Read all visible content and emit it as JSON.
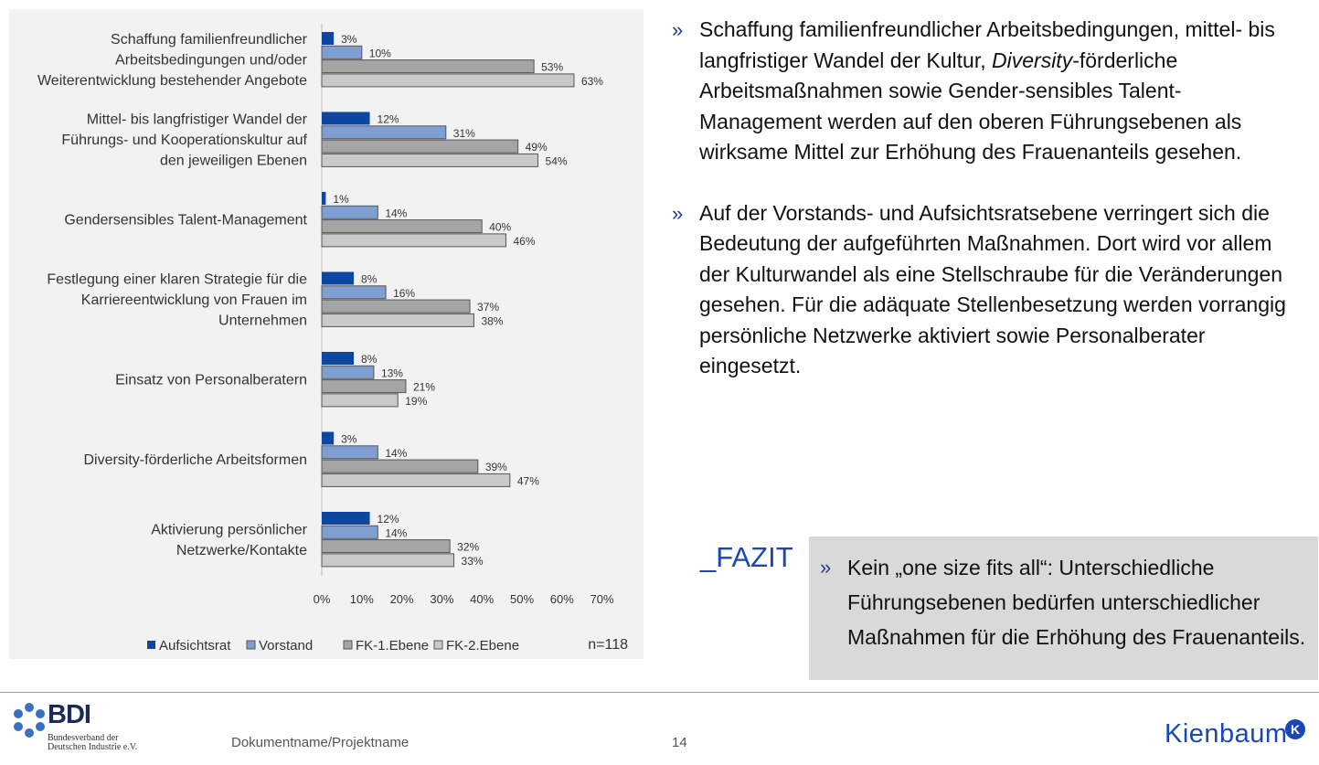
{
  "chart_data": {
    "type": "bar",
    "orientation": "horizontal",
    "categories": [
      "Schaffung familienfreundlicher Arbeitsbedingungen und/oder Weiterentwicklung bestehender Angebote",
      "Mittel- bis langfristiger Wandel der Führungs- und Kooperationskultur auf den jeweiligen Ebenen",
      "Gendersensibles Talent-Management",
      "Festlegung einer klaren Strategie für die Karriereentwicklung von Frauen im Unternehmen",
      "Einsatz von Personalberatern",
      "Diversity-förderliche Arbeitsformen",
      "Aktivierung persönlicher Netzwerke/Kontakte"
    ],
    "category_lines": [
      [
        "Schaffung familienfreundlicher",
        "Arbeitsbedingungen und/oder",
        "Weiterentwicklung bestehender Angebote"
      ],
      [
        "Mittel- bis langfristiger Wandel der",
        "Führungs- und Kooperationskultur auf",
        "den jeweiligen Ebenen"
      ],
      [
        "Gendersensibles Talent-Management"
      ],
      [
        "Festlegung einer klaren Strategie für die",
        "Karriereentwicklung von Frauen im",
        "Unternehmen"
      ],
      [
        "Einsatz von Personalberatern"
      ],
      [
        "Diversity-förderliche Arbeitsformen"
      ],
      [
        "Aktivierung persönlicher",
        "Netzwerke/Kontakte"
      ]
    ],
    "series": [
      {
        "name": "Aufsichtsrat",
        "color": "#0d47a1",
        "values": [
          3,
          12,
          1,
          8,
          8,
          3,
          12
        ]
      },
      {
        "name": "Vorstand",
        "color": "#7f9fd3",
        "values": [
          10,
          31,
          14,
          16,
          13,
          14,
          14
        ]
      },
      {
        "name": "FK-1.Ebene",
        "color": "#a5a5a5",
        "values": [
          53,
          49,
          40,
          37,
          21,
          39,
          32
        ]
      },
      {
        "name": "FK-2.Ebene",
        "color": "#c9c9c9",
        "values": [
          63,
          54,
          46,
          38,
          19,
          47,
          33
        ]
      }
    ],
    "value_suffix": "%",
    "xlim": [
      0,
      70
    ],
    "x_ticks": [
      "0%",
      "10%",
      "20%",
      "30%",
      "40%",
      "50%",
      "60%",
      "70%"
    ],
    "grid": false,
    "legend_position": "bottom",
    "n_label": "n=118"
  },
  "bullets": [
    {
      "mark": "»",
      "parts": [
        {
          "text": "Schaffung familienfreundlicher Arbeitsbedingungen, mittel- bis langfristiger Wandel der Kultur, ",
          "italic": false
        },
        {
          "text": "Diversity",
          "italic": true
        },
        {
          "text": "-förderliche Arbeitsmaßnahmen sowie Gender-sensibles Talent-Management werden auf den oberen Führungsebenen als wirksame Mittel zur Erhöhung des Frauenanteils gesehen.",
          "italic": false
        }
      ]
    },
    {
      "mark": "»",
      "parts": [
        {
          "text": "Auf der Vorstands- und Aufsichtsratsebene verringert sich die Bedeutung der aufgeführten Maßnahmen. Dort wird vor allem der Kulturwandel als eine Stellschraube für die Veränderungen gesehen. Für die adäquate Stellenbesetzung werden vorrangig persönliche Netzwerke aktiviert sowie Personalberater eingesetzt.",
          "italic": false
        }
      ]
    }
  ],
  "fazit": {
    "title": "_FAZIT",
    "mark": "»",
    "text": "Kein „one size fits all“: Unterschiedliche Führungsebenen bedürfen unterschiedlicher Maßnahmen für die Erhöhung des Frauenanteils."
  },
  "footer": {
    "bdi_name": "BDI",
    "bdi_sub_1": "Bundesverband der",
    "bdi_sub_2": "Deutschen Industrie e.V.",
    "doc_name": "Dokumentname/Projektname",
    "page_number": "14",
    "brand": "Kienbaum",
    "brand_badge": "K"
  }
}
